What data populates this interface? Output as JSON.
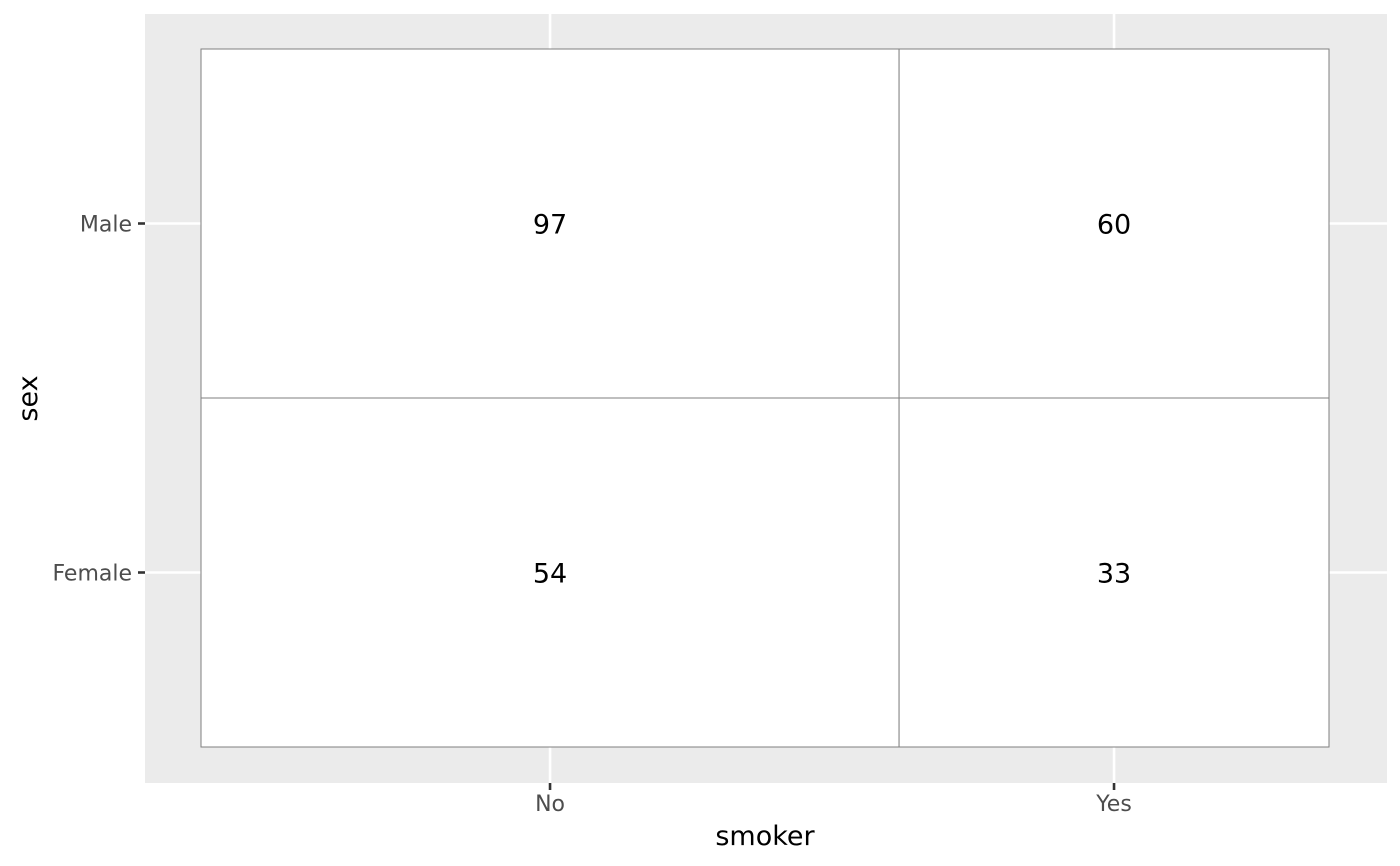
{
  "chart_data": {
    "type": "table",
    "title": "",
    "xlabel": "smoker",
    "ylabel": "sex",
    "x_categories": [
      "No",
      "Yes"
    ],
    "y_categories": [
      "Female",
      "Male"
    ],
    "cells": [
      {
        "x": "No",
        "y": "Male",
        "value": 97
      },
      {
        "x": "Yes",
        "y": "Male",
        "value": 60
      },
      {
        "x": "No",
        "y": "Female",
        "value": 54
      },
      {
        "x": "Yes",
        "y": "Female",
        "value": 33
      }
    ],
    "grid": true,
    "legend": "none",
    "colors": {
      "panel_background": "#ebebeb",
      "gridline": "#ffffff",
      "cell_fill": "#ffffff",
      "cell_border": "#7f7f7f",
      "tick_label": "#4d4d4d",
      "tick_mark": "#333333",
      "text": "#000000"
    }
  }
}
